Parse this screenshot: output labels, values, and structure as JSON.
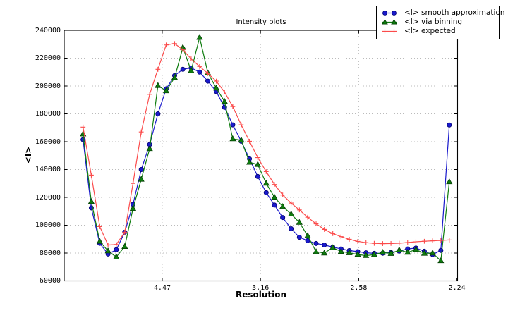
{
  "figure": {
    "background": "#ffffff",
    "grid_color": "#bbbbbb",
    "spine_color": "#000000"
  },
  "chart_data": {
    "type": "line",
    "title": "Intensity plots",
    "xlabel": "Resolution",
    "ylabel": "<I>",
    "grid": {
      "style": "dotted",
      "on": true
    },
    "legend_position": "upper-right-outside",
    "x_axis": {
      "scale": "inverse_d_squared",
      "range_s2": [
        0.0001,
        0.2003
      ],
      "ticks": [
        {
          "s2": 0.05,
          "label": "4.47"
        },
        {
          "s2": 0.1,
          "label": "3.16"
        },
        {
          "s2": 0.15,
          "label": "2.58"
        },
        {
          "s2": 0.2,
          "label": "2.24"
        }
      ]
    },
    "y_axis": {
      "min": 60000,
      "max": 240000,
      "tick_step": 20000,
      "tick_labels": [
        "60000",
        "80000",
        "100000",
        "120000",
        "140000",
        "160000",
        "180000",
        "200000",
        "220000",
        "240000"
      ]
    },
    "x_s2": [
      0.0097,
      0.0139,
      0.0182,
      0.0224,
      0.0266,
      0.0309,
      0.0351,
      0.0393,
      0.0436,
      0.0478,
      0.052,
      0.0563,
      0.0605,
      0.0647,
      0.069,
      0.0732,
      0.0775,
      0.0817,
      0.0859,
      0.0902,
      0.0944,
      0.0986,
      0.1029,
      0.1071,
      0.1113,
      0.1156,
      0.1198,
      0.124,
      0.1283,
      0.1325,
      0.1368,
      0.141,
      0.1452,
      0.1495,
      0.1537,
      0.1579,
      0.1622,
      0.1664,
      0.1706,
      0.1749,
      0.1791,
      0.1834,
      0.1876,
      0.1918,
      0.1961
    ],
    "series": [
      {
        "name": "<I> smooth approximation",
        "marker": "circle",
        "color": "#1a1acc",
        "edge": "#000070",
        "values": [
          161500,
          112500,
          87000,
          79300,
          82400,
          95000,
          115000,
          140000,
          158000,
          180000,
          198000,
          207500,
          212000,
          213000,
          210000,
          203500,
          196000,
          184700,
          172100,
          160300,
          147700,
          135000,
          123400,
          114500,
          105500,
          97500,
          91400,
          88900,
          86900,
          85800,
          84300,
          83000,
          81800,
          81000,
          80200,
          79800,
          79900,
          80400,
          81400,
          83000,
          83600,
          81300,
          78900,
          81900,
          172000
        ]
      },
      {
        "name": "<I> via binning",
        "marker": "triangle",
        "color": "#0e7c0e",
        "edge": "#013801",
        "values": [
          165500,
          117000,
          88400,
          81500,
          77200,
          84700,
          112000,
          133000,
          155000,
          200300,
          196500,
          206000,
          227700,
          211000,
          234900,
          209400,
          198500,
          188900,
          162000,
          161100,
          145200,
          143600,
          130100,
          120100,
          113400,
          108000,
          102000,
          92500,
          81000,
          80000,
          83900,
          81100,
          80200,
          79000,
          78200,
          78900,
          80500,
          79700,
          82200,
          80500,
          82500,
          79800,
          80000,
          74500,
          131200
        ]
      },
      {
        "name": "<I> expected",
        "marker": "plus",
        "color": "#fb4b4b",
        "edge": "#fb4b4b",
        "values": [
          170500,
          136000,
          99000,
          85800,
          86200,
          95000,
          130000,
          167000,
          194000,
          212000,
          229500,
          230500,
          226000,
          219500,
          214000,
          209000,
          203500,
          195700,
          185200,
          172100,
          160300,
          148600,
          138500,
          129300,
          121700,
          115900,
          111000,
          105700,
          101000,
          97000,
          94000,
          91800,
          89900,
          88400,
          87500,
          87000,
          86800,
          86900,
          87100,
          87600,
          88100,
          88500,
          88800,
          89100,
          89400
        ]
      }
    ]
  }
}
